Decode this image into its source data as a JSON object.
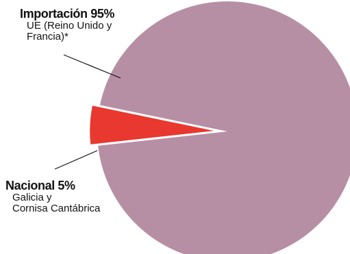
{
  "chart_data": {
    "type": "pie",
    "title": "",
    "slices": [
      {
        "title": "Importación 95%",
        "sub_lines": [
          "UE (Reino Unido y",
          "Francia)*"
        ],
        "value": 95,
        "color": "#b78fa5"
      },
      {
        "title": "Nacional 5%",
        "sub_lines": [
          "Galicia y",
          "Cornisa Cantábrica"
        ],
        "value": 5,
        "color": "#e8382f",
        "exploded": true
      }
    ]
  }
}
